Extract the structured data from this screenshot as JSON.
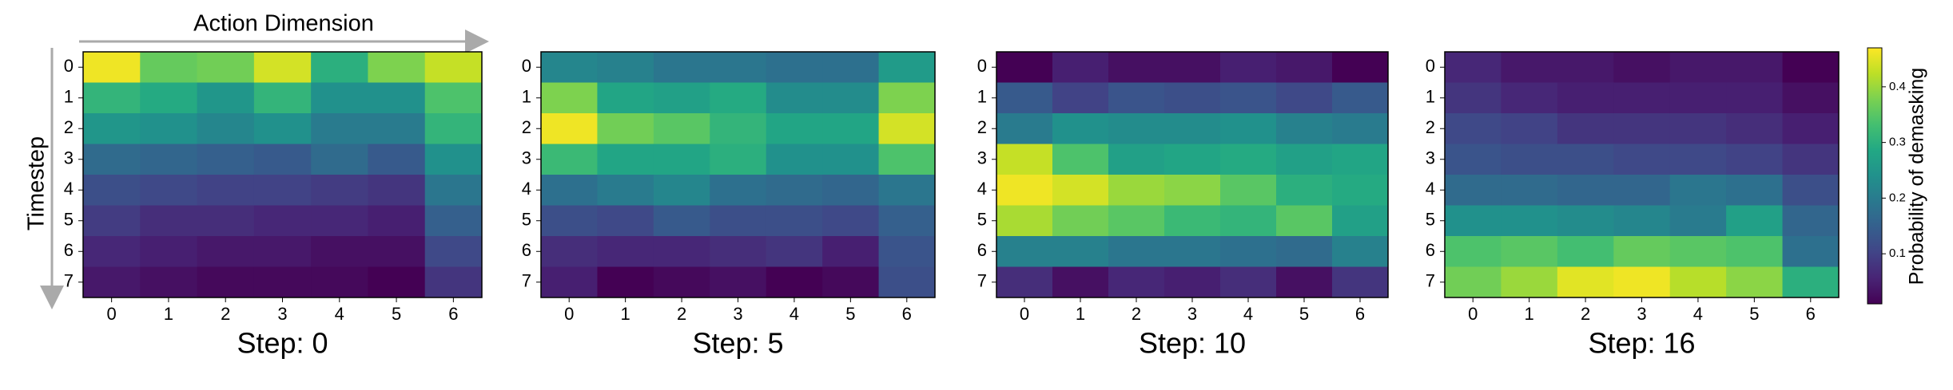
{
  "chart_data": [
    {
      "type": "heatmap",
      "title": "Step: 0",
      "x_label": "Action Dimension",
      "y_label": "Timestep",
      "x_categories": [
        "0",
        "1",
        "2",
        "3",
        "4",
        "5",
        "6"
      ],
      "y_categories": [
        "0",
        "1",
        "2",
        "3",
        "4",
        "5",
        "6",
        "7"
      ],
      "colormap": "viridis",
      "values": [
        [
          0.46,
          0.36,
          0.37,
          0.44,
          0.3,
          0.38,
          0.43
        ],
        [
          0.31,
          0.29,
          0.25,
          0.31,
          0.24,
          0.24,
          0.34
        ],
        [
          0.25,
          0.24,
          0.22,
          0.24,
          0.2,
          0.2,
          0.31
        ],
        [
          0.17,
          0.16,
          0.15,
          0.14,
          0.17,
          0.14,
          0.24
        ],
        [
          0.12,
          0.11,
          0.1,
          0.1,
          0.09,
          0.08,
          0.19
        ],
        [
          0.09,
          0.07,
          0.07,
          0.06,
          0.06,
          0.05,
          0.15
        ],
        [
          0.06,
          0.05,
          0.04,
          0.04,
          0.03,
          0.03,
          0.11
        ],
        [
          0.04,
          0.03,
          0.02,
          0.02,
          0.02,
          0.01,
          0.08
        ]
      ]
    },
    {
      "type": "heatmap",
      "title": "Step: 5",
      "x_categories": [
        "0",
        "1",
        "2",
        "3",
        "4",
        "5",
        "6"
      ],
      "y_categories": [
        "0",
        "1",
        "2",
        "3",
        "4",
        "5",
        "6",
        "7"
      ],
      "colormap": "viridis",
      "values": [
        [
          0.22,
          0.21,
          0.19,
          0.19,
          0.18,
          0.18,
          0.26
        ],
        [
          0.38,
          0.28,
          0.27,
          0.29,
          0.23,
          0.23,
          0.38
        ],
        [
          0.46,
          0.37,
          0.35,
          0.31,
          0.28,
          0.28,
          0.44
        ],
        [
          0.32,
          0.28,
          0.28,
          0.3,
          0.24,
          0.24,
          0.34
        ],
        [
          0.18,
          0.2,
          0.22,
          0.18,
          0.17,
          0.16,
          0.19
        ],
        [
          0.12,
          0.11,
          0.14,
          0.12,
          0.12,
          0.11,
          0.15
        ],
        [
          0.07,
          0.06,
          0.06,
          0.07,
          0.08,
          0.05,
          0.13
        ],
        [
          0.05,
          0.01,
          0.02,
          0.03,
          0.01,
          0.02,
          0.12
        ]
      ]
    },
    {
      "type": "heatmap",
      "title": "Step: 10",
      "x_categories": [
        "0",
        "1",
        "2",
        "3",
        "4",
        "5",
        "6"
      ],
      "y_categories": [
        "0",
        "1",
        "2",
        "3",
        "4",
        "5",
        "6",
        "7"
      ],
      "colormap": "viridis",
      "values": [
        [
          0.01,
          0.05,
          0.03,
          0.03,
          0.05,
          0.04,
          0.01
        ],
        [
          0.14,
          0.1,
          0.13,
          0.12,
          0.13,
          0.11,
          0.14
        ],
        [
          0.2,
          0.24,
          0.23,
          0.23,
          0.24,
          0.21,
          0.2
        ],
        [
          0.43,
          0.34,
          0.27,
          0.28,
          0.29,
          0.27,
          0.28
        ],
        [
          0.46,
          0.44,
          0.4,
          0.39,
          0.35,
          0.3,
          0.29
        ],
        [
          0.41,
          0.37,
          0.35,
          0.32,
          0.31,
          0.35,
          0.27
        ],
        [
          0.21,
          0.21,
          0.19,
          0.19,
          0.18,
          0.17,
          0.21
        ],
        [
          0.07,
          0.03,
          0.06,
          0.05,
          0.07,
          0.03,
          0.08
        ]
      ]
    },
    {
      "type": "heatmap",
      "title": "Step: 16",
      "x_categories": [
        "0",
        "1",
        "2",
        "3",
        "4",
        "5",
        "6"
      ],
      "y_categories": [
        "0",
        "1",
        "2",
        "3",
        "4",
        "5",
        "6",
        "7"
      ],
      "colormap": "viridis",
      "values": [
        [
          0.06,
          0.04,
          0.04,
          0.03,
          0.04,
          0.04,
          0.01
        ],
        [
          0.08,
          0.06,
          0.05,
          0.05,
          0.05,
          0.05,
          0.03
        ],
        [
          0.11,
          0.1,
          0.08,
          0.08,
          0.08,
          0.07,
          0.05
        ],
        [
          0.13,
          0.12,
          0.12,
          0.11,
          0.11,
          0.1,
          0.08
        ],
        [
          0.17,
          0.17,
          0.16,
          0.16,
          0.19,
          0.18,
          0.12
        ],
        [
          0.24,
          0.24,
          0.23,
          0.22,
          0.2,
          0.27,
          0.16
        ],
        [
          0.34,
          0.35,
          0.33,
          0.36,
          0.35,
          0.34,
          0.18
        ],
        [
          0.37,
          0.4,
          0.45,
          0.46,
          0.42,
          0.39,
          0.3
        ]
      ]
    }
  ],
  "colorbar": {
    "label": "Probability of demasking",
    "lim": [
      0.01,
      0.47
    ],
    "ticks": [
      0.1,
      0.2,
      0.3,
      0.4
    ]
  }
}
